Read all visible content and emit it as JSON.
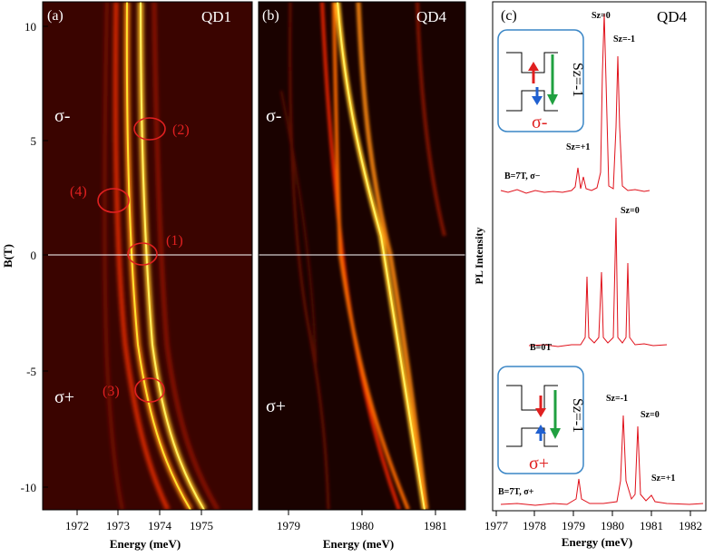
{
  "panels": {
    "a": {
      "letter": "(a)",
      "qd_label": "QD1",
      "ylabel": "B(T)",
      "xlabel": "Energy (meV)",
      "xticks": [
        "1972",
        "1973",
        "1974",
        "1975"
      ],
      "yticks": [
        "10",
        "5",
        "0",
        "-5",
        "-10"
      ],
      "sigma_minus": "σ-",
      "sigma_plus": "σ+",
      "circle_labels": [
        "(2)",
        "(4)",
        "(1)",
        "(3)"
      ]
    },
    "b": {
      "letter": "(b)",
      "qd_label": "QD4",
      "xlabel": "Energy (meV)",
      "xticks": [
        "1979",
        "1980",
        "1981"
      ],
      "sigma_minus": "σ-",
      "sigma_plus": "σ+"
    },
    "c": {
      "letter": "(c)",
      "qd_label": "QD4",
      "ylabel": "PL Intensity",
      "xlabel": "Energy (meV)",
      "xticks": [
        "1977",
        "1978",
        "1979",
        "1980",
        "1981",
        "1982"
      ],
      "spectra": [
        {
          "label": "B=7T, σ−",
          "peaks": [
            "Sz=0",
            "Sz=-1",
            "Sz=+1"
          ]
        },
        {
          "label": "B=0T",
          "peaks": [
            "Sz=0"
          ]
        },
        {
          "label": "B=7T, σ+",
          "peaks": [
            "Sz=-1",
            "Sz=0",
            "Sz=+1"
          ]
        }
      ],
      "inset_top": {
        "spin_label": "Sz=-1",
        "polarization": "σ-"
      },
      "inset_bottom": {
        "spin_label": "Sz=-1",
        "polarization": "σ+"
      }
    }
  },
  "colors": {
    "hot_dark": "#3a0400",
    "hot_red": "#d21a00",
    "hot_yellow": "#ffe230",
    "spectrum": "#e0101a",
    "annotation": "#e02020",
    "inset_border": "#3a86c6"
  }
}
